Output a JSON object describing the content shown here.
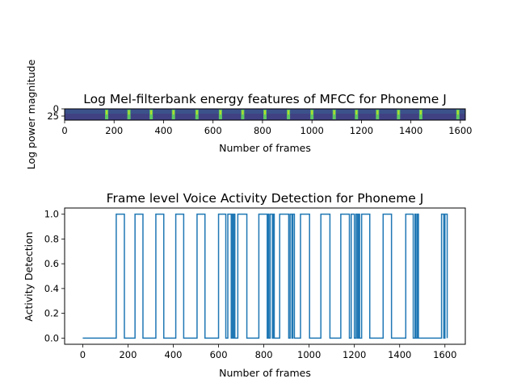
{
  "palette": {
    "line": "#1f77b4",
    "axes": "#000000",
    "background": "#ffffff",
    "spectrogram_base": "#3b528b",
    "spectrogram_low": "#472d7b",
    "spectrogram_burst": "#5ec962",
    "spectrogram_burst_high": "#b5de2b"
  },
  "chart_data": [
    {
      "type": "heatmap",
      "title": "Log Mel-filterbank energy features of MFCC for Phoneme J",
      "xlabel": "Number of frames",
      "ylabel": "Log power magnitude",
      "colormap": "viridis",
      "xlim": [
        0,
        1620
      ],
      "ylim": [
        39,
        0
      ],
      "xticks": [
        0,
        200,
        400,
        600,
        800,
        1000,
        1200,
        1400,
        1600
      ],
      "yticks": [
        0,
        25
      ],
      "bright_columns": [
        170,
        260,
        350,
        440,
        535,
        630,
        720,
        810,
        905,
        1000,
        1090,
        1180,
        1265,
        1350,
        1440,
        1590
      ]
    },
    {
      "type": "line",
      "title": "Frame level Voice Activity Detection for Phoneme J",
      "xlabel": "Number of frames",
      "ylabel": "Activity Detection",
      "xlim": [
        -80,
        1690
      ],
      "ylim": [
        -0.05,
        1.05
      ],
      "xticks": [
        0,
        200,
        400,
        600,
        800,
        1000,
        1200,
        1400,
        1600
      ],
      "yticks": [
        "0.0",
        "0.2",
        "0.4",
        "0.6",
        "0.8",
        "1.0"
      ],
      "grid": false,
      "x_range": [
        0,
        1610
      ],
      "active_segments": [
        [
          148,
          184
        ],
        [
          231,
          266
        ],
        [
          323,
          358
        ],
        [
          411,
          446
        ],
        [
          505,
          540
        ],
        [
          600,
          632
        ],
        [
          641,
          656
        ],
        [
          660,
          665
        ],
        [
          668,
          672
        ],
        [
          685,
          725
        ],
        [
          778,
          815
        ],
        [
          818,
          822
        ],
        [
          828,
          838
        ],
        [
          842,
          846
        ],
        [
          870,
          910
        ],
        [
          916,
          924
        ],
        [
          928,
          935
        ],
        [
          962,
          1002
        ],
        [
          1052,
          1092
        ],
        [
          1140,
          1178
        ],
        [
          1186,
          1200
        ],
        [
          1207,
          1213
        ],
        [
          1218,
          1223
        ],
        [
          1232,
          1268
        ],
        [
          1327,
          1364
        ],
        [
          1427,
          1460
        ],
        [
          1468,
          1472
        ],
        [
          1478,
          1483
        ],
        [
          1585,
          1595
        ],
        [
          1600,
          1610
        ]
      ]
    }
  ]
}
